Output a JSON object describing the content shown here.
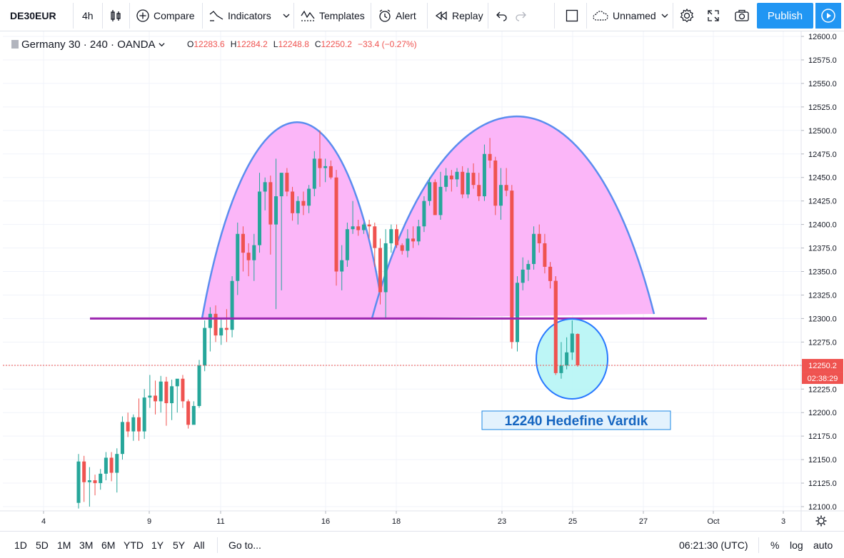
{
  "toolbar": {
    "symbol": "DE30EUR",
    "interval": "4h",
    "compare_label": "Compare",
    "indicators_label": "Indicators",
    "templates_label": "Templates",
    "alert_label": "Alert",
    "replay_label": "Replay",
    "layout_name": "Unnamed",
    "publish_label": "Publish"
  },
  "legend": {
    "title": "Germany 30 · 240 · OANDA",
    "open_label": "O",
    "open": "12283.6",
    "high_label": "H",
    "high": "12284.2",
    "low_label": "L",
    "low": "12248.8",
    "close_label": "C",
    "close": "12250.2",
    "change": "−33.4 (−0.27%)"
  },
  "price_axis": {
    "current_price_label": "12250.2",
    "countdown_label": "02:38:29",
    "current_price_color": "#ef5350"
  },
  "annotation": {
    "text": "12240 Hedefine Vardık"
  },
  "bottom_bar": {
    "ranges": [
      "1D",
      "5D",
      "1M",
      "3M",
      "6M",
      "YTD",
      "1Y",
      "5Y",
      "All"
    ],
    "goto_label": "Go to...",
    "time": "06:21:30 (UTC)",
    "percent_label": "%",
    "log_label": "log",
    "auto_label": "auto"
  },
  "colors": {
    "up": "#26a69a",
    "down": "#ef5350",
    "pattern_fill": "#fbb6f8",
    "pattern_stroke": "#5b8def",
    "neckline": "#9c27b0",
    "target_fill": "#b2f5f5",
    "target_stroke": "#2979ff",
    "accent": "#2196f3"
  },
  "chart_data": {
    "type": "candlestick",
    "title": "Germany 30 · 240 · OANDA",
    "ylim": [
      12100,
      12600
    ],
    "y_ticks": [
      12100.0,
      12125.0,
      12150.0,
      12175.0,
      12200.0,
      12225.0,
      12250.0,
      12275.0,
      12300.0,
      12325.0,
      12350.0,
      12375.0,
      12400.0,
      12425.0,
      12450.0,
      12475.0,
      12500.0,
      12525.0,
      12550.0,
      12575.0,
      12600.0
    ],
    "x_ticks": [
      "4",
      "9",
      "11",
      "16",
      "18",
      "23",
      "25",
      "27",
      "Oct",
      "3"
    ],
    "neckline": 12300,
    "target_label": "12240 Hedefine Vardık",
    "grid": true,
    "candles": [
      {
        "o": 12104,
        "h": 12156,
        "l": 12098,
        "c": 12148
      },
      {
        "o": 12148,
        "h": 12154,
        "l": 12105,
        "c": 12126
      },
      {
        "o": 12126,
        "h": 12142,
        "l": 12100,
        "c": 12128
      },
      {
        "o": 12128,
        "h": 12134,
        "l": 12112,
        "c": 12125
      },
      {
        "o": 12125,
        "h": 12140,
        "l": 12118,
        "c": 12135
      },
      {
        "o": 12135,
        "h": 12158,
        "l": 12128,
        "c": 12152
      },
      {
        "o": 12152,
        "h": 12158,
        "l": 12127,
        "c": 12136
      },
      {
        "o": 12136,
        "h": 12162,
        "l": 12115,
        "c": 12156
      },
      {
        "o": 12156,
        "h": 12196,
        "l": 12150,
        "c": 12190
      },
      {
        "o": 12190,
        "h": 12200,
        "l": 12174,
        "c": 12180
      },
      {
        "o": 12180,
        "h": 12198,
        "l": 12170,
        "c": 12195
      },
      {
        "o": 12195,
        "h": 12215,
        "l": 12170,
        "c": 12180
      },
      {
        "o": 12180,
        "h": 12225,
        "l": 12172,
        "c": 12216
      },
      {
        "o": 12216,
        "h": 12240,
        "l": 12205,
        "c": 12218
      },
      {
        "o": 12218,
        "h": 12234,
        "l": 12198,
        "c": 12212
      },
      {
        "o": 12212,
        "h": 12239,
        "l": 12200,
        "c": 12233
      },
      {
        "o": 12233,
        "h": 12238,
        "l": 12186,
        "c": 12210
      },
      {
        "o": 12210,
        "h": 12235,
        "l": 12192,
        "c": 12228
      },
      {
        "o": 12228,
        "h": 12234,
        "l": 12200,
        "c": 12236
      },
      {
        "o": 12236,
        "h": 12240,
        "l": 12205,
        "c": 12212
      },
      {
        "o": 12212,
        "h": 12214,
        "l": 12183,
        "c": 12187
      },
      {
        "o": 12187,
        "h": 12212,
        "l": 12190,
        "c": 12207
      },
      {
        "o": 12207,
        "h": 12256,
        "l": 12205,
        "c": 12250
      },
      {
        "o": 12250,
        "h": 12298,
        "l": 12244,
        "c": 12290
      },
      {
        "o": 12290,
        "h": 12312,
        "l": 12265,
        "c": 12305
      },
      {
        "o": 12305,
        "h": 12314,
        "l": 12275,
        "c": 12282
      },
      {
        "o": 12282,
        "h": 12300,
        "l": 12272,
        "c": 12290
      },
      {
        "o": 12290,
        "h": 12310,
        "l": 12275,
        "c": 12288
      },
      {
        "o": 12288,
        "h": 12345,
        "l": 12280,
        "c": 12340
      },
      {
        "o": 12340,
        "h": 12402,
        "l": 12325,
        "c": 12390
      },
      {
        "o": 12390,
        "h": 12398,
        "l": 12350,
        "c": 12370
      },
      {
        "o": 12370,
        "h": 12380,
        "l": 12345,
        "c": 12362
      },
      {
        "o": 12362,
        "h": 12390,
        "l": 12340,
        "c": 12378
      },
      {
        "o": 12378,
        "h": 12455,
        "l": 12370,
        "c": 12435
      },
      {
        "o": 12435,
        "h": 12450,
        "l": 12415,
        "c": 12445
      },
      {
        "o": 12445,
        "h": 12452,
        "l": 12368,
        "c": 12400
      },
      {
        "o": 12400,
        "h": 12470,
        "l": 12310,
        "c": 12430
      },
      {
        "o": 12430,
        "h": 12450,
        "l": 12330,
        "c": 12455
      },
      {
        "o": 12455,
        "h": 12460,
        "l": 12430,
        "c": 12435
      },
      {
        "o": 12435,
        "h": 12440,
        "l": 12404,
        "c": 12412
      },
      {
        "o": 12412,
        "h": 12430,
        "l": 12400,
        "c": 12425
      },
      {
        "o": 12425,
        "h": 12435,
        "l": 12410,
        "c": 12420
      },
      {
        "o": 12420,
        "h": 12442,
        "l": 12412,
        "c": 12438
      },
      {
        "o": 12438,
        "h": 12478,
        "l": 12430,
        "c": 12470
      },
      {
        "o": 12470,
        "h": 12500,
        "l": 12440,
        "c": 12460
      },
      {
        "o": 12460,
        "h": 12470,
        "l": 12445,
        "c": 12462
      },
      {
        "o": 12462,
        "h": 12468,
        "l": 12448,
        "c": 12450
      },
      {
        "o": 12450,
        "h": 12458,
        "l": 12335,
        "c": 12350
      },
      {
        "o": 12350,
        "h": 12378,
        "l": 12330,
        "c": 12362
      },
      {
        "o": 12362,
        "h": 12402,
        "l": 12355,
        "c": 12395
      },
      {
        "o": 12395,
        "h": 12425,
        "l": 12390,
        "c": 12398
      },
      {
        "o": 12398,
        "h": 12405,
        "l": 12388,
        "c": 12394
      },
      {
        "o": 12394,
        "h": 12402,
        "l": 12390,
        "c": 12400
      },
      {
        "o": 12400,
        "h": 12405,
        "l": 12385,
        "c": 12398
      },
      {
        "o": 12398,
        "h": 12402,
        "l": 12355,
        "c": 12375
      },
      {
        "o": 12375,
        "h": 12385,
        "l": 12315,
        "c": 12328
      },
      {
        "o": 12328,
        "h": 12395,
        "l": 12300,
        "c": 12380
      },
      {
        "o": 12380,
        "h": 12400,
        "l": 12370,
        "c": 12395
      },
      {
        "o": 12395,
        "h": 12400,
        "l": 12375,
        "c": 12378
      },
      {
        "o": 12378,
        "h": 12380,
        "l": 12368,
        "c": 12372
      },
      {
        "o": 12372,
        "h": 12395,
        "l": 12365,
        "c": 12385
      },
      {
        "o": 12385,
        "h": 12398,
        "l": 12375,
        "c": 12382
      },
      {
        "o": 12382,
        "h": 12405,
        "l": 12378,
        "c": 12398
      },
      {
        "o": 12398,
        "h": 12430,
        "l": 12392,
        "c": 12425
      },
      {
        "o": 12425,
        "h": 12450,
        "l": 12420,
        "c": 12445
      },
      {
        "o": 12445,
        "h": 12448,
        "l": 12410,
        "c": 12410
      },
      {
        "o": 12410,
        "h": 12456,
        "l": 12405,
        "c": 12440
      },
      {
        "o": 12440,
        "h": 12460,
        "l": 12435,
        "c": 12452
      },
      {
        "o": 12452,
        "h": 12458,
        "l": 12435,
        "c": 12448
      },
      {
        "o": 12448,
        "h": 12460,
        "l": 12440,
        "c": 12456
      },
      {
        "o": 12456,
        "h": 12462,
        "l": 12428,
        "c": 12432
      },
      {
        "o": 12432,
        "h": 12460,
        "l": 12428,
        "c": 12455
      },
      {
        "o": 12455,
        "h": 12465,
        "l": 12438,
        "c": 12442
      },
      {
        "o": 12442,
        "h": 12455,
        "l": 12425,
        "c": 12430
      },
      {
        "o": 12430,
        "h": 12485,
        "l": 12425,
        "c": 12475
      },
      {
        "o": 12475,
        "h": 12492,
        "l": 12460,
        "c": 12468
      },
      {
        "o": 12468,
        "h": 12472,
        "l": 12410,
        "c": 12420
      },
      {
        "o": 12420,
        "h": 12460,
        "l": 12405,
        "c": 12442
      },
      {
        "o": 12442,
        "h": 12460,
        "l": 12430,
        "c": 12436
      },
      {
        "o": 12436,
        "h": 12442,
        "l": 12268,
        "c": 12275
      },
      {
        "o": 12275,
        "h": 12345,
        "l": 12265,
        "c": 12338
      },
      {
        "o": 12338,
        "h": 12365,
        "l": 12330,
        "c": 12352
      },
      {
        "o": 12352,
        "h": 12362,
        "l": 12340,
        "c": 12358
      },
      {
        "o": 12358,
        "h": 12398,
        "l": 12352,
        "c": 12390
      },
      {
        "o": 12390,
        "h": 12400,
        "l": 12370,
        "c": 12380
      },
      {
        "o": 12380,
        "h": 12390,
        "l": 12348,
        "c": 12355
      },
      {
        "o": 12355,
        "h": 12360,
        "l": 12332,
        "c": 12340
      },
      {
        "o": 12340,
        "h": 12345,
        "l": 12240,
        "c": 12242
      },
      {
        "o": 12242,
        "h": 12275,
        "l": 12236,
        "c": 12250
      },
      {
        "o": 12250,
        "h": 12280,
        "l": 12246,
        "c": 12264
      },
      {
        "o": 12264,
        "h": 12298,
        "l": 12256,
        "c": 12284
      },
      {
        "o": 12283.6,
        "h": 12284.2,
        "l": 12248.8,
        "c": 12250.2
      }
    ]
  }
}
